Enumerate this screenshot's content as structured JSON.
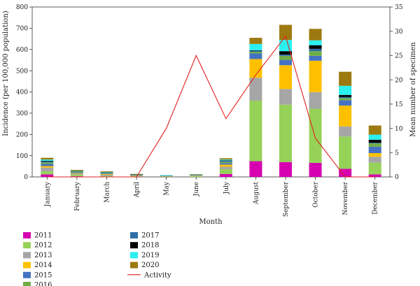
{
  "chart_data": {
    "type": "bar",
    "stacked": true,
    "xlabel": "Month",
    "ylabel_left": "Incidence (per 100,000 population)",
    "ylabel_right": "Mean number of specimen",
    "ylim_left": [
      0,
      800
    ],
    "ylim_right": [
      0,
      35
    ],
    "yticks_left": [
      0,
      100,
      200,
      300,
      400,
      500,
      600,
      700,
      800
    ],
    "yticks_right": [
      0,
      5,
      10,
      15,
      20,
      25,
      30,
      35
    ],
    "categories": [
      "January",
      "February",
      "March",
      "April",
      "May",
      "June",
      "July",
      "August",
      "September",
      "October",
      "November",
      "December"
    ],
    "series": [
      {
        "name": "2011",
        "color": "#d600b0",
        "values": [
          12,
          3,
          2,
          1,
          0,
          0,
          14,
          74,
          70,
          66,
          38,
          12
        ]
      },
      {
        "name": "2012",
        "color": "#96d258",
        "values": [
          14,
          7,
          3,
          2,
          2,
          4,
          22,
          285,
          270,
          255,
          152,
          55
        ]
      },
      {
        "name": "2013",
        "color": "#a6a6a6",
        "values": [
          18,
          4,
          5,
          2,
          1,
          2,
          12,
          108,
          74,
          78,
          48,
          28
        ]
      },
      {
        "name": "2014",
        "color": "#ffc000",
        "values": [
          7,
          3,
          3,
          2,
          1,
          2,
          10,
          88,
          112,
          148,
          98,
          17
        ]
      },
      {
        "name": "2015",
        "color": "#4472c4",
        "values": [
          10,
          4,
          3,
          2,
          1,
          1,
          7,
          26,
          25,
          23,
          25,
          30
        ]
      },
      {
        "name": "2016",
        "color": "#70ad47",
        "values": [
          7,
          4,
          3,
          1,
          1,
          1,
          6,
          8,
          19,
          22,
          10,
          16
        ]
      },
      {
        "name": "2017",
        "color": "#2e6fa8",
        "values": [
          5,
          2,
          2,
          1,
          1,
          1,
          5,
          5,
          6,
          11,
          5,
          3
        ]
      },
      {
        "name": "2018",
        "color": "#000000",
        "values": [
          3,
          1,
          1,
          1,
          0,
          0,
          2,
          2,
          16,
          17,
          10,
          14
        ]
      },
      {
        "name": "2019",
        "color": "#2af0f0",
        "values": [
          6,
          1,
          1,
          1,
          1,
          1,
          4,
          30,
          53,
          23,
          43,
          24
        ]
      },
      {
        "name": "2020",
        "color": "#9d7a10",
        "values": [
          8,
          4,
          3,
          1,
          0,
          1,
          6,
          29,
          71,
          54,
          66,
          43
        ]
      }
    ],
    "line_series": {
      "name": "Activity",
      "color": "#e02020",
      "axis": "right",
      "values": [
        0,
        0,
        0,
        0,
        10,
        25,
        12,
        21,
        29,
        8,
        0,
        0
      ]
    },
    "legend_placement": "bottom-left",
    "grid": false
  }
}
